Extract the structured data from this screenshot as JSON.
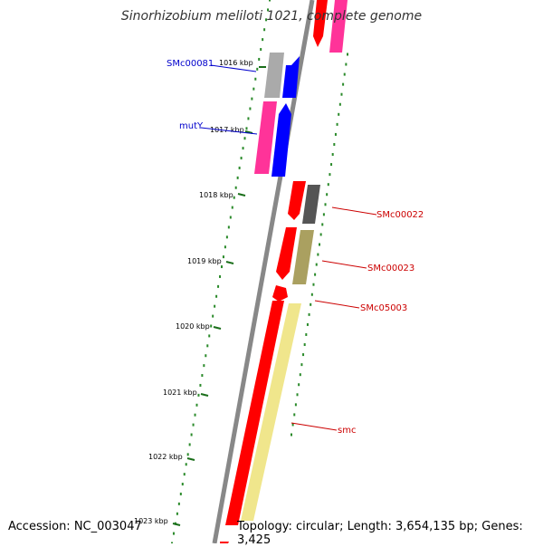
{
  "title": "Sinorhizobium meliloti 1021, complete genome",
  "accession": "Accession: NC_003047",
  "summary": "Topology: circular; Length: 3,654,135 bp; Genes: 3,425",
  "colors": {
    "backbone": "#888888",
    "dots": "#2a8a2a",
    "ticks": "#1a6e1a",
    "label_blue": "#0000cc",
    "label_red": "#cc0000",
    "red": "#ff0000",
    "pink": "#ff3399",
    "blue": "#0000ff",
    "grey": "#aaaaaa",
    "darkgrey": "#555555",
    "olive": "#aaa060",
    "lightyellow": "#f0e68c"
  },
  "ticks": [
    "1016 kbp",
    "1017 kbp",
    "1018 kbp",
    "1019 kbp",
    "1020 kbp",
    "1021 kbp",
    "1022 kbp",
    "1023 kbp"
  ],
  "gene_labels": [
    {
      "name": "SMc00081",
      "color": "label_blue"
    },
    {
      "name": "mutY",
      "color": "label_blue"
    },
    {
      "name": "SMc00022",
      "color": "label_red"
    },
    {
      "name": "SMc00023",
      "color": "label_red"
    },
    {
      "name": "SMc05003",
      "color": "label_red"
    },
    {
      "name": "smc",
      "color": "label_red"
    }
  ],
  "features": [
    {
      "color": "red"
    },
    {
      "color": "pink"
    },
    {
      "color": "grey"
    },
    {
      "color": "blue"
    },
    {
      "color": "pink"
    },
    {
      "color": "blue"
    },
    {
      "color": "red"
    },
    {
      "color": "darkgrey"
    },
    {
      "color": "red"
    },
    {
      "color": "olive"
    },
    {
      "color": "red"
    },
    {
      "color": "red"
    },
    {
      "color": "lightyellow"
    },
    {
      "color": "red"
    }
  ]
}
